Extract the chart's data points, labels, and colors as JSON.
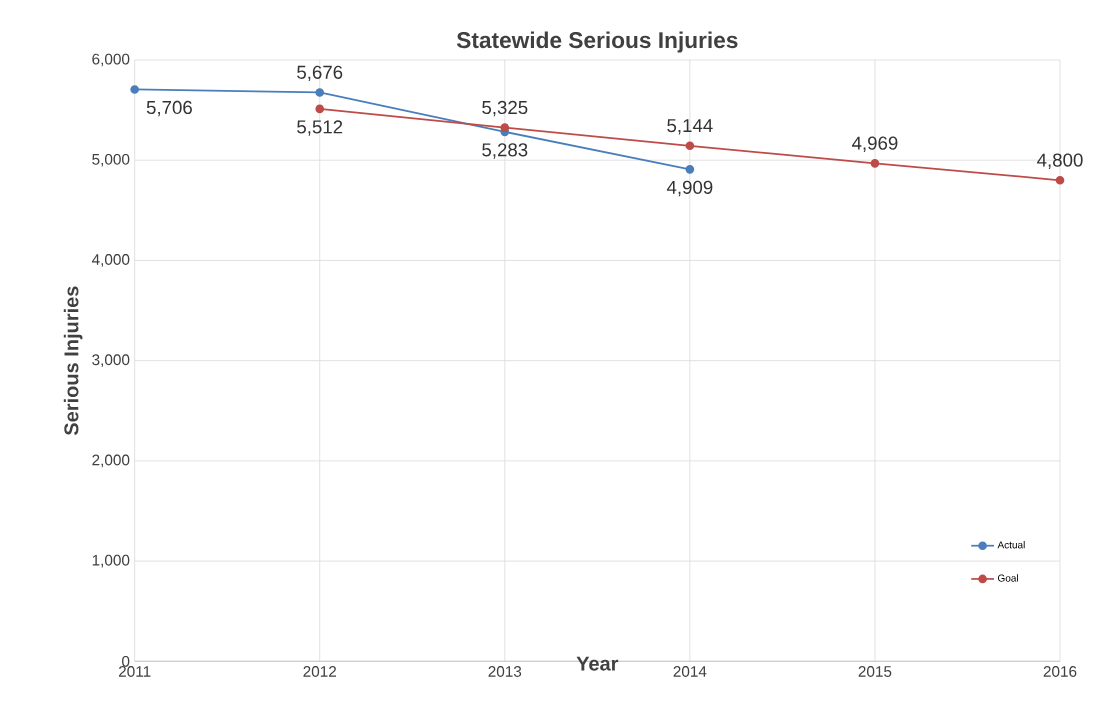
{
  "chart_data": {
    "type": "line",
    "title": "Statewide Serious Injuries",
    "xlabel": "Year",
    "ylabel": "Serious Injuries",
    "x": [
      2011,
      2012,
      2013,
      2014,
      2015,
      2016
    ],
    "series": [
      {
        "name": "Actual",
        "color": "#4a7ebb",
        "values": [
          5706,
          5676,
          5283,
          4909,
          null,
          null
        ],
        "value_labels": [
          "5,706",
          "5,676",
          "5,283",
          "4,909",
          null,
          null
        ]
      },
      {
        "name": "Goal",
        "color": "#be4b48",
        "values": [
          null,
          5512,
          5325,
          5144,
          4969,
          4800
        ],
        "value_labels": [
          null,
          "5,512",
          "5,325",
          "5,144",
          "4,969",
          "4,800"
        ]
      }
    ],
    "xlim": [
      2011,
      2016
    ],
    "xticks": [
      2011,
      2012,
      2013,
      2014,
      2015,
      2016
    ],
    "ylim": [
      0,
      6000
    ],
    "yticks": [
      {
        "value": 0,
        "label": "0"
      },
      {
        "value": 1000,
        "label": "1,000"
      },
      {
        "value": 2000,
        "label": "2,000"
      },
      {
        "value": 3000,
        "label": "3,000"
      },
      {
        "value": 4000,
        "label": "4,000"
      },
      {
        "value": 5000,
        "label": "5,000"
      },
      {
        "value": 6000,
        "label": "6,000"
      }
    ],
    "grid": true,
    "legend": "bottom right",
    "marker": "circle",
    "line_style": "solid"
  }
}
